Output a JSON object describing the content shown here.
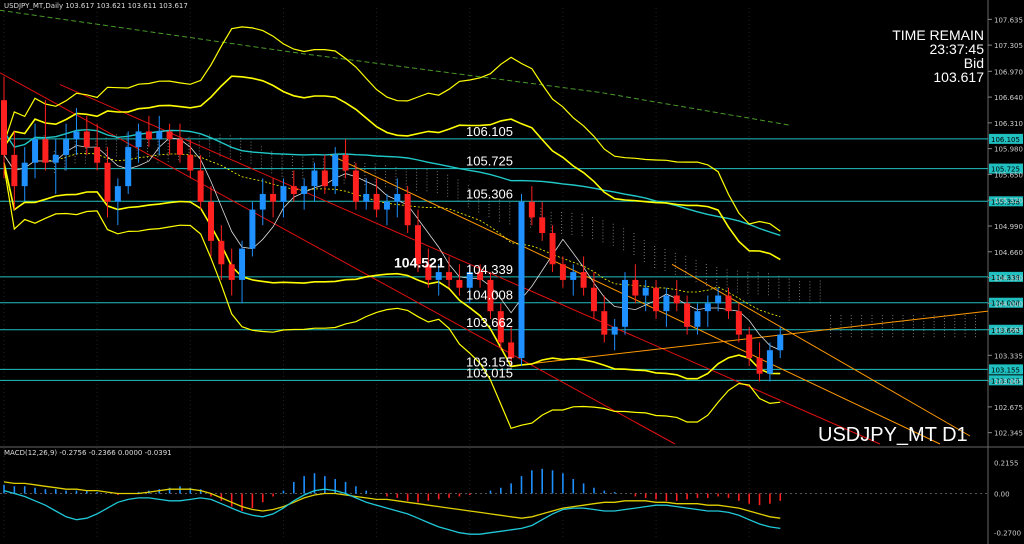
{
  "header": {
    "symbol_info": "USDJPY_MT,Daily  103.617 103.621 103.611 103.617"
  },
  "timer": {
    "label": "TIME REMAIN",
    "time": "23:37:45",
    "bid_label": "Bid",
    "bid": "103.617"
  },
  "symbol_label": "USDJPY_MT D1",
  "macd_info": "MACD(12,26,9) -0.2756 -0.2366 0.0000 -0.0391",
  "colors": {
    "background": "#000000",
    "bull": "#1e90ff",
    "bear": "#ff2020",
    "bollinger": "#ffff00",
    "ma_cyan": "#20c8c8",
    "ma_dash": "#4a9a2a",
    "trend_red": "#e01010",
    "trend_orange": "#ff9900",
    "level_line": "#20c0c0",
    "macd_signal": "#e0d000",
    "macd_main": "#20c8d8"
  },
  "chart_data": [
    {
      "type": "candlestick",
      "title": "USDJPY_MT D1",
      "ylim": [
        102.2,
        107.78
      ],
      "y_ticks": [
        "107.635",
        "107.305",
        "106.970",
        "106.640",
        "106.310",
        "105.980",
        "105.650",
        "105.320",
        "104.990",
        "104.660",
        "104.330",
        "104.000",
        "103.665",
        "103.335",
        "103.005",
        "102.675",
        "102.345"
      ],
      "levels": [
        {
          "value": 106.105,
          "label": "106.105"
        },
        {
          "value": 105.725,
          "label": "105.725"
        },
        {
          "value": 105.306,
          "label": "105.306"
        },
        {
          "value": 104.339,
          "label": "104.339"
        },
        {
          "value": 104.008,
          "label": "104.008"
        },
        {
          "value": 103.662,
          "label": "103.662"
        },
        {
          "value": 103.155,
          "label": "103.155"
        },
        {
          "value": 103.015,
          "label": "103.015"
        }
      ],
      "annotation": {
        "value": 104.521,
        "label": "104.521"
      },
      "ohlc": [
        [
          106.6,
          106.9,
          105.6,
          105.9
        ],
        [
          105.9,
          106.2,
          105.2,
          105.5
        ],
        [
          105.5,
          106.0,
          105.3,
          105.8
        ],
        [
          105.8,
          106.3,
          105.6,
          106.1
        ],
        [
          106.1,
          106.6,
          105.7,
          105.8
        ],
        [
          105.8,
          106.1,
          105.4,
          105.9
        ],
        [
          105.9,
          106.3,
          105.7,
          106.1
        ],
        [
          106.1,
          106.5,
          105.9,
          106.2
        ],
        [
          106.2,
          106.4,
          105.9,
          106.0
        ],
        [
          106.0,
          106.3,
          105.7,
          105.8
        ],
        [
          105.8,
          106.0,
          105.1,
          105.3
        ],
        [
          105.3,
          105.6,
          105.0,
          105.5
        ],
        [
          105.5,
          106.2,
          105.4,
          106.0
        ],
        [
          106.0,
          106.3,
          105.8,
          106.2
        ],
        [
          106.2,
          106.4,
          106.0,
          106.1
        ],
        [
          106.1,
          106.4,
          105.9,
          106.2
        ],
        [
          106.2,
          106.3,
          105.9,
          106.1
        ],
        [
          106.1,
          106.3,
          105.8,
          105.9
        ],
        [
          105.9,
          106.1,
          105.6,
          105.7
        ],
        [
          105.7,
          105.9,
          105.2,
          105.3
        ],
        [
          105.3,
          105.5,
          104.6,
          104.8
        ],
        [
          104.8,
          105.0,
          104.3,
          104.5
        ],
        [
          104.5,
          104.7,
          104.1,
          104.3
        ],
        [
          104.3,
          104.8,
          104.0,
          104.7
        ],
        [
          104.7,
          105.3,
          104.6,
          105.2
        ],
        [
          105.2,
          105.6,
          105.0,
          105.4
        ],
        [
          105.4,
          105.6,
          105.1,
          105.3
        ],
        [
          105.3,
          105.6,
          105.1,
          105.5
        ],
        [
          105.5,
          105.7,
          105.3,
          105.4
        ],
        [
          105.4,
          105.6,
          105.2,
          105.5
        ],
        [
          105.5,
          105.8,
          105.3,
          105.7
        ],
        [
          105.7,
          105.9,
          105.4,
          105.5
        ],
        [
          105.5,
          106.0,
          105.4,
          105.9
        ],
        [
          105.9,
          106.1,
          105.6,
          105.7
        ],
        [
          105.7,
          105.8,
          105.2,
          105.3
        ],
        [
          105.3,
          105.6,
          105.2,
          105.4
        ],
        [
          105.4,
          105.6,
          105.1,
          105.2
        ],
        [
          105.2,
          105.4,
          105.0,
          105.3
        ],
        [
          105.3,
          105.6,
          105.1,
          105.4
        ],
        [
          105.4,
          105.5,
          104.9,
          105.0
        ],
        [
          105.0,
          105.2,
          104.4,
          104.5
        ],
        [
          104.5,
          104.7,
          104.2,
          104.3
        ],
        [
          104.3,
          104.5,
          104.1,
          104.4
        ],
        [
          104.4,
          104.6,
          104.2,
          104.3
        ],
        [
          104.3,
          104.5,
          104.1,
          104.2
        ],
        [
          104.2,
          104.5,
          104.0,
          104.4
        ],
        [
          104.4,
          104.5,
          104.2,
          104.3
        ],
        [
          104.3,
          104.4,
          103.8,
          103.9
        ],
        [
          103.9,
          104.0,
          103.4,
          103.5
        ],
        [
          103.5,
          103.7,
          103.2,
          103.3
        ],
        [
          103.3,
          105.4,
          103.2,
          105.3
        ],
        [
          105.3,
          105.5,
          105.0,
          105.1
        ],
        [
          105.1,
          105.3,
          104.8,
          104.9
        ],
        [
          104.9,
          105.0,
          104.4,
          104.5
        ],
        [
          104.5,
          104.6,
          104.2,
          104.3
        ],
        [
          104.3,
          104.5,
          104.1,
          104.4
        ],
        [
          104.4,
          104.6,
          104.1,
          104.2
        ],
        [
          104.2,
          104.4,
          103.8,
          103.9
        ],
        [
          103.9,
          104.1,
          103.5,
          103.6
        ],
        [
          103.6,
          103.8,
          103.4,
          103.7
        ],
        [
          103.7,
          104.4,
          103.6,
          104.3
        ],
        [
          104.3,
          104.5,
          104.0,
          104.1
        ],
        [
          104.1,
          104.3,
          103.9,
          104.2
        ],
        [
          104.2,
          104.3,
          103.8,
          103.9
        ],
        [
          103.9,
          104.2,
          103.7,
          104.1
        ],
        [
          104.1,
          104.3,
          103.9,
          104.0
        ],
        [
          104.0,
          104.1,
          103.6,
          103.7
        ],
        [
          103.7,
          104.0,
          103.6,
          103.9
        ],
        [
          103.9,
          104.1,
          103.7,
          104.0
        ],
        [
          104.0,
          104.2,
          103.9,
          104.1
        ],
        [
          104.1,
          104.2,
          103.8,
          103.9
        ],
        [
          103.9,
          104.0,
          103.5,
          103.6
        ],
        [
          103.6,
          103.7,
          103.2,
          103.3
        ],
        [
          103.3,
          103.5,
          103.0,
          103.1
        ],
        [
          103.1,
          103.5,
          103.0,
          103.4
        ],
        [
          103.4,
          103.7,
          103.3,
          103.6
        ]
      ]
    },
    {
      "type": "bar",
      "title": "MACD(12,26,9)",
      "ylim": [
        -0.32,
        0.3
      ],
      "y_ticks": [
        "0.2155",
        "0.00",
        "-0.2700"
      ],
      "values": [
        0.06,
        0.05,
        0.05,
        0.04,
        0.03,
        0.03,
        0.02,
        0.02,
        0.02,
        0.01,
        0.0,
        -0.01,
        0.0,
        0.01,
        0.02,
        0.03,
        0.04,
        0.05,
        0.04,
        0.03,
        -0.02,
        -0.05,
        -0.09,
        -0.12,
        -0.1,
        -0.06,
        -0.02,
        0.02,
        0.08,
        0.12,
        0.14,
        0.12,
        0.1,
        0.08,
        0.05,
        0.02,
        0.0,
        -0.02,
        -0.03,
        -0.05,
        -0.06,
        -0.05,
        -0.04,
        -0.03,
        -0.02,
        -0.01,
        0.0,
        0.02,
        0.04,
        0.07,
        0.12,
        0.16,
        0.17,
        0.16,
        0.14,
        0.1,
        0.07,
        0.04,
        0.02,
        0.01,
        0.0,
        -0.02,
        -0.03,
        -0.04,
        -0.05,
        -0.05,
        -0.04,
        -0.03,
        -0.03,
        -0.02,
        -0.03,
        -0.05,
        -0.07,
        -0.08,
        -0.07,
        -0.05
      ],
      "series": [
        {
          "name": "Signal",
          "values": [
            0.08,
            0.07,
            0.07,
            0.06,
            0.05,
            0.04,
            0.03,
            0.03,
            0.02,
            0.02,
            0.01,
            0.0,
            0.0,
            0.0,
            0.01,
            0.02,
            0.03,
            0.03,
            0.03,
            0.02,
            0.0,
            -0.03,
            -0.06,
            -0.09,
            -0.11,
            -0.12,
            -0.11,
            -0.09,
            -0.06,
            -0.03,
            -0.01,
            0.0,
            0.0,
            -0.01,
            -0.02,
            -0.03,
            -0.04,
            -0.04,
            -0.05,
            -0.06,
            -0.07,
            -0.08,
            -0.09,
            -0.1,
            -0.11,
            -0.12,
            -0.13,
            -0.14,
            -0.15,
            -0.16,
            -0.17,
            -0.16,
            -0.14,
            -0.12,
            -0.1,
            -0.09,
            -0.08,
            -0.07,
            -0.06,
            -0.06,
            -0.05,
            -0.05,
            -0.05,
            -0.06,
            -0.06,
            -0.07,
            -0.07,
            -0.07,
            -0.08,
            -0.08,
            -0.09,
            -0.1,
            -0.12,
            -0.14,
            -0.16,
            -0.17
          ]
        },
        {
          "name": "Main",
          "values": [
            0.02,
            0.0,
            -0.02,
            -0.05,
            -0.08,
            -0.12,
            -0.16,
            -0.18,
            -0.17,
            -0.14,
            -0.1,
            -0.06,
            -0.04,
            -0.03,
            -0.03,
            -0.04,
            -0.05,
            -0.05,
            -0.04,
            -0.03,
            -0.04,
            -0.07,
            -0.1,
            -0.13,
            -0.15,
            -0.16,
            -0.14,
            -0.1,
            -0.05,
            -0.01,
            0.02,
            0.03,
            0.02,
            0.0,
            -0.03,
            -0.06,
            -0.08,
            -0.1,
            -0.12,
            -0.14,
            -0.17,
            -0.2,
            -0.23,
            -0.25,
            -0.27,
            -0.28,
            -0.28,
            -0.27,
            -0.26,
            -0.25,
            -0.24,
            -0.22,
            -0.18,
            -0.14,
            -0.11,
            -0.1,
            -0.1,
            -0.11,
            -0.12,
            -0.12,
            -0.11,
            -0.1,
            -0.09,
            -0.08,
            -0.08,
            -0.09,
            -0.1,
            -0.11,
            -0.12,
            -0.12,
            -0.13,
            -0.15,
            -0.18,
            -0.21,
            -0.23,
            -0.24
          ]
        }
      ]
    }
  ]
}
